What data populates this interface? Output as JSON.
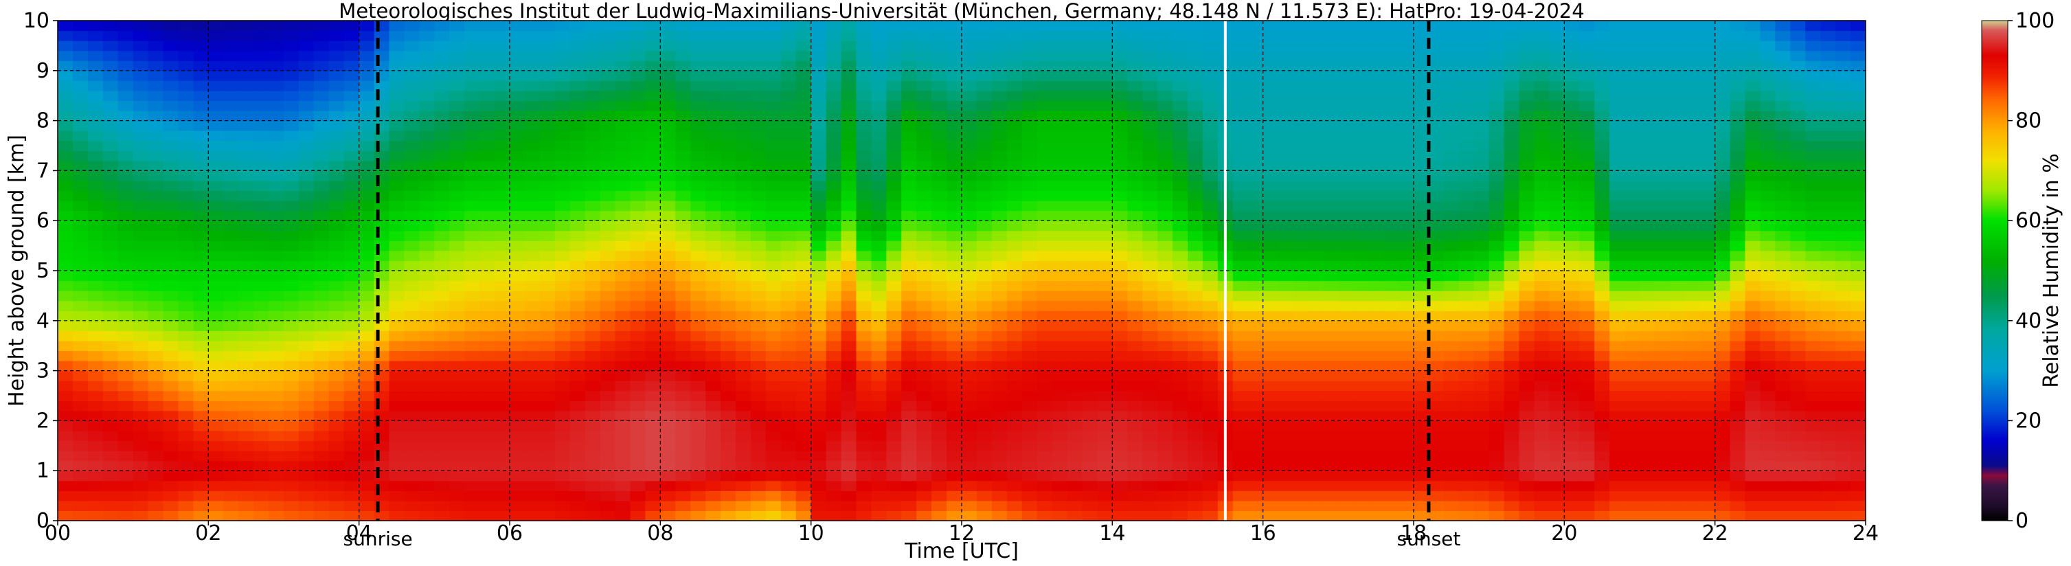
{
  "chart_data": {
    "type": "heatmap",
    "title": "Meteorologisches Institut der Ludwig-Maximilians-Universität (München, Germany; 48.148 N / 11.573 E):    HatPro: 19-04-2024",
    "xlabel": "Time [UTC]",
    "ylabel": "Height above ground [km]",
    "colorbar_label": "Relative Humidity in %",
    "xlim": [
      0,
      24
    ],
    "ylim": [
      0,
      10
    ],
    "clim": [
      0,
      100
    ],
    "x_ticks": [
      0,
      2,
      4,
      6,
      8,
      10,
      12,
      14,
      16,
      18,
      20,
      22,
      24
    ],
    "x_tick_labels": [
      "00",
      "02",
      "04",
      "06",
      "08",
      "10",
      "12",
      "14",
      "16",
      "18",
      "20",
      "22",
      "24"
    ],
    "y_ticks": [
      0,
      1,
      2,
      3,
      4,
      5,
      6,
      7,
      8,
      9,
      10
    ],
    "y_tick_labels": [
      "0",
      "1",
      "2",
      "3",
      "4",
      "5",
      "6",
      "7",
      "8",
      "9",
      "10"
    ],
    "colorbar_ticks": [
      0,
      20,
      40,
      60,
      80,
      100
    ],
    "colorbar_tick_labels": [
      "0",
      "20",
      "40",
      "60",
      "80",
      "100"
    ],
    "grid": true,
    "events": [
      {
        "name": "sunrise",
        "x": 4.25
      },
      {
        "name": "sunset",
        "x": 18.2
      }
    ],
    "data_gap_x": 15.5,
    "colormap": [
      {
        "v": 0,
        "color": "#000000"
      },
      {
        "v": 3,
        "color": "#1f0b2a"
      },
      {
        "v": 7,
        "color": "#3a1545"
      },
      {
        "v": 9,
        "color": "#8b0a3a"
      },
      {
        "v": 11,
        "color": "#0a0a8a"
      },
      {
        "v": 16,
        "color": "#0000cd"
      },
      {
        "v": 22,
        "color": "#0050d8"
      },
      {
        "v": 30,
        "color": "#00a0d0"
      },
      {
        "v": 38,
        "color": "#00a8a0"
      },
      {
        "v": 45,
        "color": "#009a4a"
      },
      {
        "v": 52,
        "color": "#00b000"
      },
      {
        "v": 60,
        "color": "#00e000"
      },
      {
        "v": 66,
        "color": "#a0e800"
      },
      {
        "v": 72,
        "color": "#f0e000"
      },
      {
        "v": 78,
        "color": "#ffb000"
      },
      {
        "v": 84,
        "color": "#ff6a00"
      },
      {
        "v": 89,
        "color": "#f02000"
      },
      {
        "v": 93,
        "color": "#e00000"
      },
      {
        "v": 98,
        "color": "#d85858"
      },
      {
        "v": 100,
        "color": "#d0d090"
      }
    ],
    "profiles": [
      {
        "t": 0.0,
        "rh": [
          85,
          96,
          94,
          88,
          68,
          60,
          58,
          50,
          40,
          30,
          15
        ]
      },
      {
        "t": 1.0,
        "rh": [
          86,
          95,
          92,
          82,
          66,
          58,
          52,
          42,
          30,
          22,
          14
        ]
      },
      {
        "t": 1.5,
        "rh": [
          84,
          94,
          90,
          78,
          64,
          58,
          52,
          40,
          28,
          20,
          12
        ]
      },
      {
        "t": 2.0,
        "rh": [
          80,
          94,
          86,
          74,
          62,
          58,
          50,
          38,
          26,
          18,
          12
        ]
      },
      {
        "t": 3.0,
        "rh": [
          84,
          92,
          84,
          76,
          64,
          58,
          48,
          36,
          26,
          18,
          13
        ]
      },
      {
        "t": 4.0,
        "rh": [
          86,
          94,
          90,
          82,
          66,
          60,
          54,
          44,
          32,
          22,
          14
        ]
      },
      {
        "t": 4.5,
        "rh": [
          88,
          95,
          94,
          90,
          74,
          66,
          58,
          50,
          40,
          32,
          24
        ]
      },
      {
        "t": 5.5,
        "rh": [
          90,
          95,
          94,
          90,
          78,
          70,
          62,
          54,
          46,
          36,
          28
        ]
      },
      {
        "t": 6.5,
        "rh": [
          90,
          95,
          94,
          90,
          80,
          72,
          62,
          55,
          50,
          36,
          28
        ]
      },
      {
        "t": 7.5,
        "rh": [
          92,
          96,
          96,
          93,
          86,
          78,
          66,
          57,
          54,
          40,
          30
        ]
      },
      {
        "t": 8.0,
        "rh": [
          84,
          97,
          97,
          94,
          88,
          80,
          68,
          58,
          55,
          44,
          32
        ]
      },
      {
        "t": 8.5,
        "rh": [
          80,
          96,
          96,
          93,
          84,
          76,
          64,
          55,
          50,
          40,
          30
        ]
      },
      {
        "t": 9.5,
        "rh": [
          72,
          94,
          93,
          88,
          80,
          70,
          60,
          52,
          48,
          40,
          30
        ]
      },
      {
        "t": 9.9,
        "rh": [
          80,
          94,
          92,
          88,
          82,
          72,
          60,
          52,
          48,
          44,
          34
        ]
      },
      {
        "t": 10.1,
        "rh": [
          90,
          94,
          92,
          88,
          78,
          68,
          52,
          40,
          38,
          34,
          30
        ]
      },
      {
        "t": 10.5,
        "rh": [
          90,
          96,
          94,
          93,
          86,
          76,
          62,
          54,
          50,
          44,
          36
        ]
      },
      {
        "t": 10.8,
        "rh": [
          88,
          94,
          92,
          86,
          74,
          62,
          48,
          40,
          38,
          34,
          30
        ]
      },
      {
        "t": 11.3,
        "rh": [
          86,
          96,
          95,
          92,
          84,
          74,
          62,
          56,
          52,
          40,
          30
        ]
      },
      {
        "t": 12.0,
        "rh": [
          78,
          94,
          93,
          90,
          80,
          70,
          60,
          52,
          46,
          36,
          30
        ]
      },
      {
        "t": 13.0,
        "rh": [
          86,
          95,
          94,
          92,
          86,
          76,
          64,
          56,
          54,
          40,
          30
        ]
      },
      {
        "t": 14.0,
        "rh": [
          88,
          96,
          95,
          92,
          86,
          76,
          64,
          56,
          54,
          40,
          30
        ]
      },
      {
        "t": 14.8,
        "rh": [
          88,
          95,
          94,
          92,
          82,
          70,
          60,
          52,
          46,
          36,
          30
        ]
      },
      {
        "t": 15.4,
        "rh": [
          86,
          94,
          93,
          90,
          80,
          64,
          50,
          40,
          38,
          34,
          30
        ]
      },
      {
        "t": 15.6,
        "rh": [
          80,
          93,
          92,
          86,
          78,
          58,
          44,
          38,
          36,
          34,
          30
        ]
      },
      {
        "t": 18.0,
        "rh": [
          80,
          93,
          92,
          86,
          78,
          56,
          44,
          38,
          36,
          34,
          30
        ]
      },
      {
        "t": 19.0,
        "rh": [
          82,
          93,
          92,
          88,
          78,
          60,
          46,
          40,
          38,
          34,
          30
        ]
      },
      {
        "t": 19.6,
        "rh": [
          86,
          96,
          95,
          93,
          86,
          74,
          60,
          54,
          50,
          40,
          30
        ]
      },
      {
        "t": 20.3,
        "rh": [
          86,
          96,
          94,
          92,
          84,
          72,
          58,
          52,
          46,
          36,
          28
        ]
      },
      {
        "t": 20.7,
        "rh": [
          84,
          93,
          92,
          86,
          76,
          58,
          44,
          38,
          36,
          34,
          30
        ]
      },
      {
        "t": 22.0,
        "rh": [
          84,
          93,
          92,
          86,
          78,
          58,
          44,
          38,
          36,
          34,
          30
        ]
      },
      {
        "t": 22.5,
        "rh": [
          86,
          96,
          95,
          93,
          84,
          72,
          60,
          52,
          46,
          36,
          28
        ]
      },
      {
        "t": 23.3,
        "rh": [
          86,
          96,
          94,
          90,
          80,
          68,
          56,
          50,
          40,
          30,
          18
        ]
      },
      {
        "t": 24.0,
        "rh": [
          86,
          95,
          94,
          90,
          78,
          66,
          56,
          50,
          40,
          28,
          16
        ]
      }
    ]
  }
}
